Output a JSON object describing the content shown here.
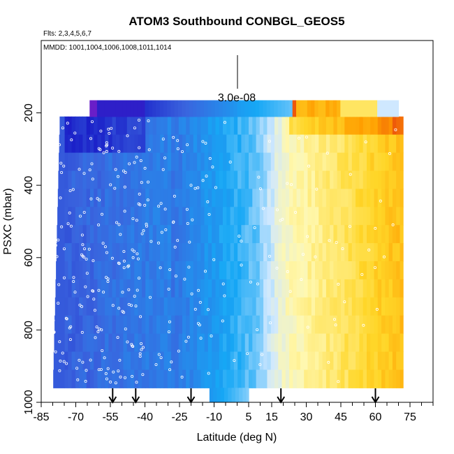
{
  "chart_data": {
    "type": "heatmap",
    "title": "ATOM3 Southbound CONBGL_GEOS5",
    "flights_label": "Flts: 2,3,4,5,6,7",
    "dates_label": "MMDD: 1001,1004,1006,1008,1011,1014",
    "scale_label": "3.0e-08",
    "xlabel": "Latitude (deg N)",
    "ylabel": "PSXC (mbar)",
    "xlim": [
      -85,
      85
    ],
    "ylim": [
      1000,
      0
    ],
    "x_ticks": [
      -85,
      -70,
      -55,
      -40,
      -25,
      -10,
      5,
      15,
      30,
      45,
      60,
      75
    ],
    "x_tick_labels": [
      "-85",
      "-70",
      "-55",
      "-40",
      "-25",
      "-10",
      "5",
      "15",
      "30",
      "45",
      "60",
      "75"
    ],
    "y_ticks": [
      200,
      400,
      600,
      800,
      1000
    ],
    "y_tick_labels": [
      "200",
      "400",
      "600",
      "800",
      "1000"
    ],
    "arrow_latitudes": [
      -54,
      -44,
      -20,
      19,
      60
    ],
    "colors": {
      "deep_blue": "#1a1fc8",
      "mid_blue": "#3a6fe0",
      "light_blue": "#16a7f5",
      "pale_blue": "#cfe8ff",
      "pale_yellow": "#fff8b0",
      "orange": "#ff9e00",
      "red_orange": "#e8400e",
      "purple": "#6a1fc8"
    }
  }
}
